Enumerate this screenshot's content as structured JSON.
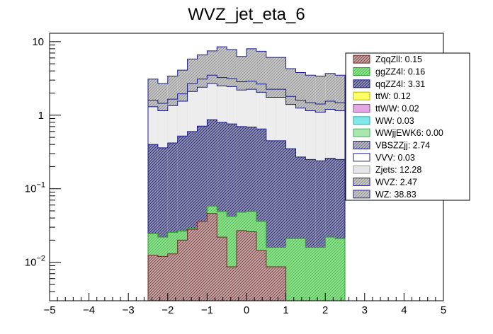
{
  "chart_data": {
    "type": "bar",
    "title": "WVZ_jet_eta_6",
    "xlabel": "",
    "ylabel": "",
    "log_y": true,
    "stacked": true,
    "xlim": [
      -5,
      5
    ],
    "ylim": [
      0.003,
      13
    ],
    "x_ticks": [
      {
        "v": -5,
        "label": "−5"
      },
      {
        "v": -4,
        "label": "−4"
      },
      {
        "v": -3,
        "label": "−3"
      },
      {
        "v": -2,
        "label": "−2"
      },
      {
        "v": -1,
        "label": "−1"
      },
      {
        "v": 0,
        "label": "0"
      },
      {
        "v": 1,
        "label": "1"
      },
      {
        "v": 2,
        "label": "2"
      },
      {
        "v": 3,
        "label": "3"
      },
      {
        "v": 4,
        "label": "4"
      },
      {
        "v": 5,
        "label": "5"
      }
    ],
    "y_ticks": [
      {
        "v": 0.01,
        "base": "10",
        "exp": "−2"
      },
      {
        "v": 0.1,
        "base": "10",
        "exp": "−1"
      },
      {
        "v": 1,
        "base": "1",
        "exp": ""
      },
      {
        "v": 10,
        "base": "10",
        "exp": ""
      }
    ],
    "bin_edges": [
      -2.5,
      -2.25,
      -2.0,
      -1.75,
      -1.5,
      -1.25,
      -1.0,
      -0.75,
      -0.5,
      -0.25,
      0.0,
      0.25,
      0.5,
      0.75,
      1.0,
      1.25,
      1.5,
      1.75,
      2.0,
      2.25,
      2.5
    ],
    "totals": {
      "ZqqZll": [
        0.0125,
        0.012,
        0.013,
        0.02,
        0.028,
        0.036,
        0.046,
        0.022,
        0.0087,
        0.027,
        0.026,
        0.0145,
        0.0087,
        0.0087,
        0.0,
        0.0,
        0.0,
        0.0,
        0.0,
        0.0
      ],
      "ggZZ4l": [
        0.0245,
        0.022,
        0.0255,
        0.0265,
        0.029,
        0.028,
        0.058,
        0.049,
        0.042,
        0.048,
        0.049,
        0.036,
        0.016,
        0.016,
        0.021,
        0.021,
        0.016,
        0.016,
        0.022,
        0.021
      ],
      "qqZZ4l": [
        0.4,
        0.36,
        0.42,
        0.52,
        0.6,
        0.71,
        0.87,
        0.8,
        0.76,
        0.7,
        0.69,
        0.65,
        0.45,
        0.45,
        0.35,
        0.27,
        0.25,
        0.24,
        0.26,
        0.25
      ],
      "Zjets": [
        1.3,
        1.15,
        1.35,
        1.55,
        2.1,
        2.4,
        2.7,
        2.5,
        2.45,
        2.2,
        2.25,
        2.05,
        1.75,
        1.75,
        1.4,
        1.25,
        1.15,
        1.1,
        1.2,
        1.15
      ],
      "WVZ": [
        1.6,
        1.45,
        1.65,
        1.95,
        2.7,
        3.1,
        3.5,
        3.25,
        3.15,
        2.85,
        2.9,
        2.65,
        2.25,
        2.25,
        1.8,
        1.6,
        1.48,
        1.42,
        1.55,
        1.48
      ],
      "WZ": [
        3.1,
        2.7,
        3.4,
        4.1,
        5.8,
        6.6,
        7.5,
        8.5,
        7.8,
        6.3,
        8.0,
        7.4,
        6.1,
        6.1,
        4.3,
        3.8,
        3.5,
        3.4,
        3.7,
        3.5
      ]
    },
    "legend": {
      "placement": "top-right",
      "entries": [
        {
          "label": "ZqqZll: 0.15",
          "fill": "#c9a6a6",
          "hatch": true,
          "hatch_color": "#7a3838",
          "border": "#6e2a2a"
        },
        {
          "label": "ggZZ4l: 0.16",
          "fill": "#90e390",
          "hatch": true,
          "hatch_color": "#3fba3f",
          "border": "#2e9f2e"
        },
        {
          "label": "qqZZ4l: 3.31",
          "fill": "#9090b8",
          "hatch": true,
          "hatch_color": "#1e1e72",
          "border": "#1a1a8c"
        },
        {
          "label": "ttW: 0.12",
          "fill": "#ffff66",
          "hatch": false,
          "hatch_color": "#ffff66",
          "border": "#b3b300"
        },
        {
          "label": "ttWW: 0.02",
          "fill": "#e2a8e2",
          "hatch": false,
          "hatch_color": "#e2a8e2",
          "border": "#8f4a8f"
        },
        {
          "label": "WW: 0.03",
          "fill": "#7fe8e8",
          "hatch": false,
          "hatch_color": "#7fe8e8",
          "border": "#2aaaaa"
        },
        {
          "label": "WWjjEWK6: 0.00",
          "fill": "#a8e8b0",
          "hatch": false,
          "hatch_color": "#a8e8b0",
          "border": "#4aa85a"
        },
        {
          "label": "VBSZZjj: 2.74",
          "fill": "#b8b8c8",
          "hatch": true,
          "hatch_color": "#6a6a82",
          "border": "#1a1a8c"
        },
        {
          "label": "VVV: 0.03",
          "fill": "#ffffff",
          "hatch": false,
          "hatch_color": "#ffffff",
          "border": "#1a1a8c"
        },
        {
          "label": "Zjets: 12.28",
          "fill": "#e6e6e6",
          "hatch": false,
          "hatch_color": "#e6e6e6",
          "border": "#9a9a9a"
        },
        {
          "label": "WVZ: 2.47",
          "fill": "#c8c8c8",
          "hatch": true,
          "hatch_color": "#8a8a8a",
          "border": "#1a1a8c"
        },
        {
          "label": "WZ: 38.83",
          "fill": "#c8c8c8",
          "hatch": true,
          "hatch_color": "#8a8a8a",
          "border": "#1a1a8c"
        }
      ]
    },
    "draw_order": [
      "WZ",
      "WVZ",
      "Zjets",
      "qqZZ4l",
      "ggZZ4l",
      "ZqqZll"
    ],
    "colors": {
      "ZqqZll": {
        "fill": "#c9a6a6",
        "hatch": "#7a3838",
        "line": "#6e2a2a"
      },
      "ggZZ4l": {
        "fill": "#90e390",
        "hatch": "#3fba3f",
        "line": "#2e9f2e"
      },
      "qqZZ4l": {
        "fill": "#9090b8",
        "hatch": "#1e1e72",
        "line": "#1a1a8c"
      },
      "Zjets": {
        "fill": "#ededed",
        "hatch": "",
        "line": "#1a1a8c"
      },
      "WVZ": {
        "fill": "#c8c8c8",
        "hatch": "#8a8a8a",
        "line": "#1a1a8c"
      },
      "WZ": {
        "fill": "#c8c8c8",
        "hatch": "#8a8a8a",
        "line": "#1a1a8c"
      }
    }
  }
}
